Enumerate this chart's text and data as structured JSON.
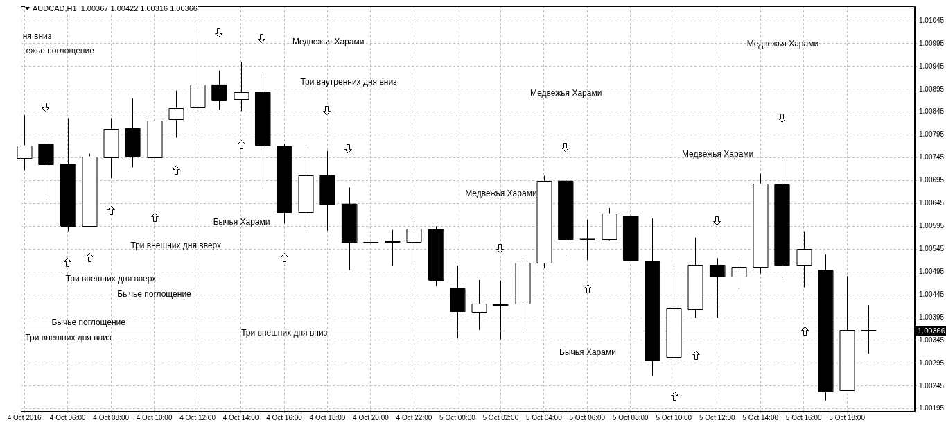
{
  "chart_data": {
    "type": "candlestick",
    "title": "AUDCAD,H1  1.00367 1.00422 1.00316 1.00366",
    "x": [
      "2016-10-04T04:00",
      "2016-10-04T05:00",
      "2016-10-04T06:00",
      "2016-10-04T07:00",
      "2016-10-04T08:00",
      "2016-10-04T09:00",
      "2016-10-04T10:00",
      "2016-10-04T11:00",
      "2016-10-04T12:00",
      "2016-10-04T13:00",
      "2016-10-04T14:00",
      "2016-10-04T15:00",
      "2016-10-04T16:00",
      "2016-10-04T17:00",
      "2016-10-04T18:00",
      "2016-10-04T19:00",
      "2016-10-04T20:00",
      "2016-10-04T21:00",
      "2016-10-04T22:00",
      "2016-10-04T23:00",
      "2016-10-05T00:00",
      "2016-10-05T01:00",
      "2016-10-05T02:00",
      "2016-10-05T03:00",
      "2016-10-05T04:00",
      "2016-10-05T05:00",
      "2016-10-05T06:00",
      "2016-10-05T07:00",
      "2016-10-05T08:00",
      "2016-10-05T09:00",
      "2016-10-05T10:00",
      "2016-10-05T11:00",
      "2016-10-05T12:00",
      "2016-10-05T13:00",
      "2016-10-05T14:00",
      "2016-10-05T15:00",
      "2016-10-05T16:00",
      "2016-10-05T17:00",
      "2016-10-05T18:00",
      "2016-10-05T19:00"
    ],
    "ohlc": [
      [
        1.00744,
        1.00838,
        1.00718,
        1.00772
      ],
      [
        1.00775,
        1.00781,
        1.00658,
        1.0073
      ],
      [
        1.00731,
        1.00832,
        1.00584,
        1.00596
      ],
      [
        1.00596,
        1.00754,
        1.00595,
        1.00748
      ],
      [
        1.00746,
        1.00832,
        1.007,
        1.00808
      ],
      [
        1.00809,
        1.00875,
        1.00724,
        1.00749
      ],
      [
        1.00746,
        1.0086,
        1.00682,
        1.00826
      ],
      [
        1.00829,
        1.00892,
        1.00789,
        1.00854
      ],
      [
        1.00856,
        1.01027,
        1.00839,
        1.00905
      ],
      [
        1.00905,
        1.00936,
        1.0085,
        1.00872
      ],
      [
        1.00874,
        1.00955,
        1.00847,
        1.00889
      ],
      [
        1.00889,
        1.00923,
        1.00687,
        1.00772
      ],
      [
        1.0077,
        1.00775,
        1.00601,
        1.00626
      ],
      [
        1.00626,
        1.00773,
        1.00584,
        1.00706
      ],
      [
        1.00706,
        1.0076,
        1.00585,
        1.00643
      ],
      [
        1.00644,
        1.0068,
        1.00499,
        1.0056
      ],
      [
        1.0056,
        1.00612,
        1.00482,
        1.00559
      ],
      [
        1.00563,
        1.00587,
        1.00508,
        1.0056
      ],
      [
        1.00561,
        1.00606,
        1.00516,
        1.0059
      ],
      [
        1.00588,
        1.00595,
        1.00464,
        1.00477
      ],
      [
        1.00459,
        1.00509,
        1.00349,
        1.00408
      ],
      [
        1.00407,
        1.00477,
        1.00368,
        1.00425
      ],
      [
        1.00424,
        1.00476,
        1.00347,
        1.00422
      ],
      [
        1.00425,
        1.00521,
        1.00366,
        1.00515
      ],
      [
        1.00515,
        1.00706,
        1.00503,
        1.00694
      ],
      [
        1.00694,
        1.00697,
        1.00531,
        1.00566
      ],
      [
        1.00567,
        1.00609,
        1.00521,
        1.00567
      ],
      [
        1.00566,
        1.00635,
        1.00564,
        1.00623
      ],
      [
        1.00618,
        1.00645,
        1.00518,
        1.00521
      ],
      [
        1.00519,
        1.00612,
        1.00267,
        1.00301
      ],
      [
        1.00308,
        1.00503,
        1.00306,
        1.00417
      ],
      [
        1.00413,
        1.0057,
        1.00395,
        1.0051
      ],
      [
        1.0051,
        1.00525,
        1.00395,
        1.00485
      ],
      [
        1.00485,
        1.00531,
        1.00458,
        1.00506
      ],
      [
        1.00506,
        1.0071,
        1.00491,
        1.00688
      ],
      [
        1.00687,
        1.0074,
        1.00482,
        1.0051
      ],
      [
        1.0051,
        1.00584,
        1.00461,
        1.00545
      ],
      [
        1.00499,
        1.00533,
        1.00213,
        1.00232
      ],
      [
        1.00236,
        1.00486,
        1.00235,
        1.00367
      ],
      [
        1.00367,
        1.00422,
        1.00316,
        1.00366
      ]
    ],
    "color": "#000000",
    "colors": [
      "#ffffff",
      "#000000",
      "#000000",
      "#ffffff",
      "#ffffff",
      "#000000",
      "#ffffff",
      "#ffffff",
      "#ffffff",
      "#000000",
      "#ffffff",
      "#000000",
      "#000000",
      "#ffffff",
      "#000000",
      "#000000",
      "#000000",
      "#000000",
      "#ffffff",
      "#000000",
      "#000000",
      "#ffffff",
      "#000000",
      "#ffffff",
      "#ffffff",
      "#000000",
      "#000000",
      "#ffffff",
      "#000000",
      "#000000",
      "#ffffff",
      "#ffffff",
      "#000000",
      "#ffffff",
      "#ffffff",
      "#000000",
      "#ffffff",
      "#000000",
      "#ffffff",
      "#000000"
    ],
    "xlim": [
      "2016-10-04T03:50",
      "2016-10-05T21:08"
    ],
    "xticks": [
      {
        "value": "2016-10-04T04:00",
        "label": "4 Oct 2016"
      },
      {
        "value": "2016-10-04T06:00",
        "label": "4 Oct 06:00"
      },
      {
        "value": "2016-10-04T08:00",
        "label": "4 Oct 08:00"
      },
      {
        "value": "2016-10-04T10:00",
        "label": "4 Oct 10:00"
      },
      {
        "value": "2016-10-04T12:00",
        "label": "4 Oct 12:00"
      },
      {
        "value": "2016-10-04T14:00",
        "label": "4 Oct 14:00"
      },
      {
        "value": "2016-10-04T16:00",
        "label": "4 Oct 16:00"
      },
      {
        "value": "2016-10-04T18:00",
        "label": "4 Oct 18:00"
      },
      {
        "value": "2016-10-04T20:00",
        "label": "4 Oct 20:00"
      },
      {
        "value": "2016-10-04T22:00",
        "label": "4 Oct 22:00"
      },
      {
        "value": "2016-10-05T00:00",
        "label": "5 Oct 00:00"
      },
      {
        "value": "2016-10-05T02:00",
        "label": "5 Oct 02:00"
      },
      {
        "value": "2016-10-05T04:00",
        "label": "5 Oct 04:00"
      },
      {
        "value": "2016-10-05T06:00",
        "label": "5 Oct 06:00"
      },
      {
        "value": "2016-10-05T08:00",
        "label": "5 Oct 08:00"
      },
      {
        "value": "2016-10-05T10:00",
        "label": "5 Oct 10:00"
      },
      {
        "value": "2016-10-05T12:00",
        "label": "5 Oct 12:00"
      },
      {
        "value": "2016-10-05T14:00",
        "label": "5 Oct 14:00"
      },
      {
        "value": "2016-10-05T16:00",
        "label": "5 Oct 16:00"
      },
      {
        "value": "2016-10-05T18:00",
        "label": "5 Oct 18:00"
      }
    ],
    "ylim": [
      1.0019,
      1.01077
    ],
    "yticks": [
      1.00195,
      1.00245,
      1.00295,
      1.00345,
      1.00395,
      1.00445,
      1.00495,
      1.00545,
      1.00595,
      1.00645,
      1.00695,
      1.00745,
      1.00795,
      1.00845,
      1.00895,
      1.00945,
      1.00995,
      1.01045
    ],
    "grid": true,
    "ref_lines": [
      {
        "axis": "y",
        "value": 1.00366,
        "label": "1.00366",
        "color": "#c0c0c0"
      }
    ],
    "annotations": [
      "ня вниз",
      "ежье поглощение",
      "Медвежья Харами",
      "Три внутренних дня вниз",
      "Медвежья Харами",
      "Медвежья Харами",
      "Медвежья Харами",
      "Медвежья Харами",
      "Бычья Харами",
      "Три внешних дня вверх",
      "Три внешних дня вверх",
      "Бычье поглощение",
      "Бычье поглощение",
      "Три внешних дня вниз",
      "Три внешних дня вниз",
      "Бычья Харами"
    ],
    "legend": false
  }
}
